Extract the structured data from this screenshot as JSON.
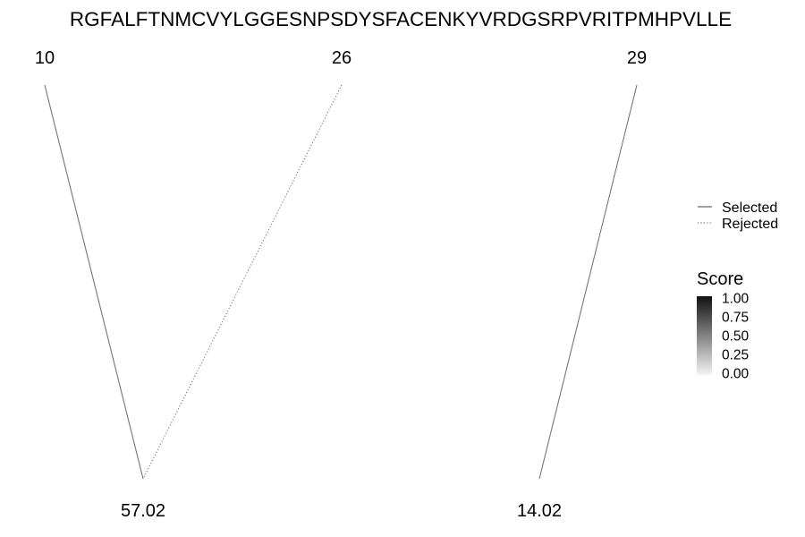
{
  "chart_data": {
    "type": "fragmentation-diagram",
    "sequence": "RGFALFTNMCVYLGGESNPSDYSFACENKYVRDGSRPVRITPMHPVLLE",
    "positions": [
      10,
      26,
      29
    ],
    "masses": [
      "57.02",
      "14.02"
    ],
    "links": [
      {
        "position": 10,
        "mass": "57.02",
        "status": "Selected",
        "score": 0.55
      },
      {
        "position": 26,
        "mass": "57.02",
        "status": "Rejected",
        "score": 0.55
      },
      {
        "position": 29,
        "mass": "14.02",
        "status": "Selected",
        "score": 0.55
      }
    ],
    "linetype_legend": {
      "entries": [
        {
          "label": "Selected",
          "style": "solid"
        },
        {
          "label": "Rejected",
          "style": "dotted"
        }
      ]
    },
    "score_legend": {
      "title": "Score",
      "ticks": [
        "1.00",
        "0.75",
        "0.50",
        "0.25",
        "0.00"
      ],
      "range": [
        0,
        1
      ],
      "color_low": "#f4f4f4",
      "color_high": "#111111"
    }
  }
}
